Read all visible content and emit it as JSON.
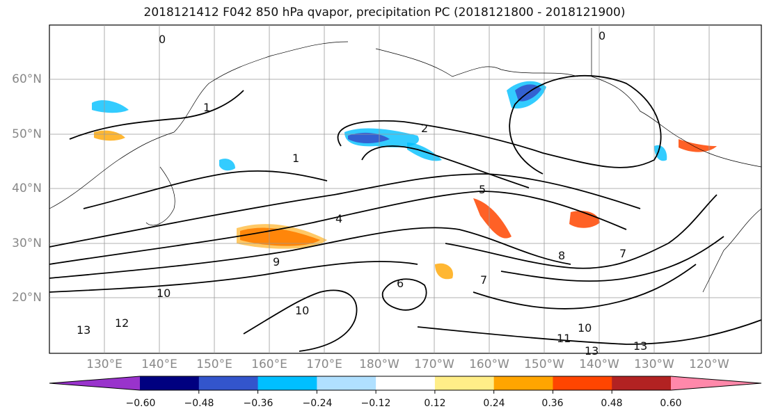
{
  "title": "2018121412 F042 850 hPa qvapor, precipitation PC (2018121800 - 2018121900)",
  "axes": {
    "y_ticks": [
      "60°N",
      "50°N",
      "40°N",
      "30°N",
      "20°N"
    ],
    "x_ticks": [
      "130°E",
      "140°E",
      "150°E",
      "160°E",
      "170°E",
      "180°W",
      "170°W",
      "160°W",
      "150°W",
      "140°W",
      "130°W",
      "120°W"
    ]
  },
  "colorbar": {
    "colors": [
      "#9933cc",
      "#000080",
      "#3355cc",
      "#00bfff",
      "#b0e0ff",
      "#ffffff",
      "#ffee88",
      "#ffa500",
      "#ff4500",
      "#b22222",
      "#ff88aa"
    ],
    "tick_labels": [
      "−0.60",
      "−0.48",
      "−0.36",
      "−0.24",
      "−0.12",
      "0.12",
      "0.24",
      "0.36",
      "0.48",
      "0.60"
    ]
  },
  "contour_labels": [
    {
      "text": "0"
    },
    {
      "text": "0"
    },
    {
      "text": "1"
    },
    {
      "text": "1"
    },
    {
      "text": "2"
    },
    {
      "text": "4"
    },
    {
      "text": "5"
    },
    {
      "text": "6"
    },
    {
      "text": "7"
    },
    {
      "text": "9"
    },
    {
      "text": "10"
    },
    {
      "text": "10"
    },
    {
      "text": "10"
    },
    {
      "text": "11"
    },
    {
      "text": "12"
    },
    {
      "text": "13"
    },
    {
      "text": "13"
    },
    {
      "text": "13"
    },
    {
      "text": "7"
    },
    {
      "text": "8"
    }
  ]
}
